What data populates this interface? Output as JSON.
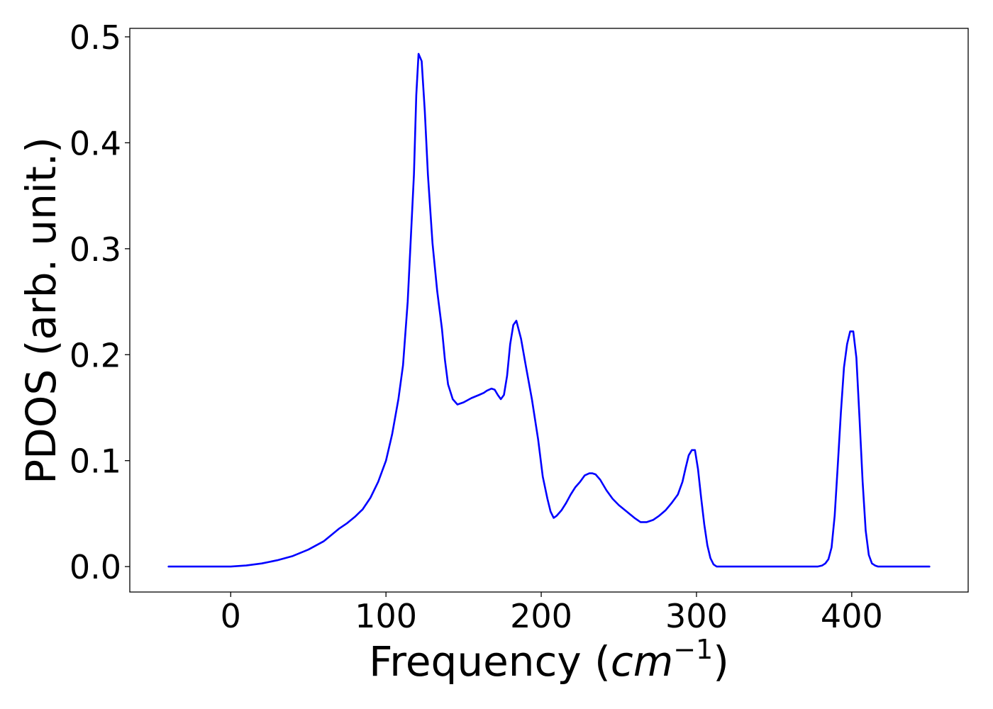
{
  "chart_data": {
    "type": "line",
    "title": "",
    "xlabel_text": "Frequency (",
    "xlabel_math": "cm",
    "xlabel_sup": "−1",
    "xlabel_close": ")",
    "ylabel": "PDOS (arb. unit.)",
    "xlim": [
      -65,
      475
    ],
    "ylim": [
      -0.024,
      0.508
    ],
    "xticks": [
      0,
      100,
      200,
      300,
      400
    ],
    "xtick_labels": [
      "0",
      "100",
      "200",
      "300",
      "400"
    ],
    "yticks": [
      0.0,
      0.1,
      0.2,
      0.3,
      0.4,
      0.5
    ],
    "ytick_labels": [
      "0.0",
      "0.1",
      "0.2",
      "0.3",
      "0.4",
      "0.5"
    ],
    "grid": false,
    "series": [
      {
        "color": "#0000ff",
        "x": [
          -40,
          -20,
          0,
          10,
          20,
          30,
          40,
          50,
          60,
          65,
          70,
          75,
          80,
          85,
          90,
          95,
          100,
          104,
          108,
          111,
          114,
          116,
          118,
          119.5,
          121,
          123,
          125,
          127,
          130,
          133,
          136,
          138,
          140,
          143,
          146,
          150,
          155,
          160,
          163,
          165,
          168,
          170,
          172,
          174,
          176,
          178,
          180,
          182,
          184,
          187,
          190,
          194,
          198,
          201,
          204,
          206,
          208,
          210,
          213,
          216,
          219,
          222,
          225,
          228,
          231,
          233,
          235,
          238,
          242,
          246,
          250,
          255,
          260,
          264,
          268,
          272,
          276,
          280,
          284,
          288,
          291,
          293,
          295,
          297,
          299,
          301,
          303,
          305,
          307,
          309,
          311,
          313,
          316,
          320,
          340,
          360,
          370,
          378,
          381,
          383,
          385,
          387,
          389,
          391,
          393,
          395,
          397,
          399,
          401,
          403,
          405,
          407,
          409,
          411,
          413,
          415,
          417,
          419,
          421,
          425,
          440,
          450
        ],
        "y": [
          0.0,
          0.0,
          0.0,
          0.001,
          0.003,
          0.006,
          0.01,
          0.016,
          0.024,
          0.03,
          0.036,
          0.041,
          0.047,
          0.054,
          0.065,
          0.08,
          0.1,
          0.125,
          0.158,
          0.19,
          0.25,
          0.31,
          0.37,
          0.445,
          0.484,
          0.477,
          0.43,
          0.37,
          0.305,
          0.26,
          0.225,
          0.195,
          0.172,
          0.158,
          0.153,
          0.155,
          0.159,
          0.162,
          0.164,
          0.166,
          0.168,
          0.167,
          0.162,
          0.158,
          0.162,
          0.18,
          0.21,
          0.228,
          0.232,
          0.215,
          0.19,
          0.158,
          0.12,
          0.085,
          0.064,
          0.052,
          0.046,
          0.048,
          0.053,
          0.06,
          0.068,
          0.075,
          0.08,
          0.086,
          0.088,
          0.088,
          0.087,
          0.082,
          0.072,
          0.064,
          0.058,
          0.052,
          0.046,
          0.042,
          0.042,
          0.044,
          0.048,
          0.053,
          0.06,
          0.068,
          0.08,
          0.093,
          0.105,
          0.11,
          0.11,
          0.092,
          0.065,
          0.04,
          0.02,
          0.008,
          0.002,
          0.0,
          0.0,
          0.0,
          0.0,
          0.0,
          0.0,
          0.0,
          0.001,
          0.003,
          0.007,
          0.018,
          0.048,
          0.095,
          0.145,
          0.188,
          0.21,
          0.222,
          0.222,
          0.197,
          0.14,
          0.08,
          0.034,
          0.011,
          0.003,
          0.001,
          0.0,
          0.0,
          0.0,
          0.0,
          0.0,
          0.0
        ]
      }
    ]
  }
}
